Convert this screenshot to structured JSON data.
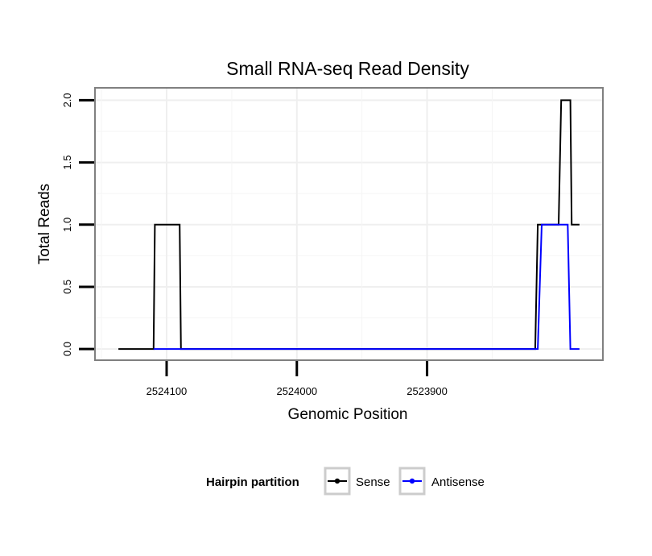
{
  "chart_data": {
    "type": "line",
    "title": "Small RNA-seq Read Density",
    "xlabel": "Genomic Position",
    "ylabel": "Total Reads",
    "x_reversed": true,
    "xlim": [
      2524155,
      2523765
    ],
    "ylim": [
      -0.09,
      2.1
    ],
    "x_ticks": [
      2524100,
      2524000,
      2523900
    ],
    "x_tick_labels": [
      "2524100",
      "2524000",
      "2523900"
    ],
    "y_ticks": [
      0,
      0.5,
      1,
      1.5,
      2
    ],
    "y_tick_labels": [
      "0.0",
      "0.5",
      "1.0",
      "1.5",
      "2.0"
    ],
    "grid": true,
    "legend": {
      "title": "Hairpin partition",
      "position": "bottom",
      "entries": [
        "Sense",
        "Antisense"
      ]
    },
    "series": [
      {
        "name": "Sense",
        "color": "#000000",
        "x": [
          2524137,
          2524110,
          2524109,
          2524090,
          2524089,
          2523817,
          2523815,
          2523799,
          2523797,
          2523790,
          2523789,
          2523783
        ],
        "y": [
          0,
          0,
          1,
          1,
          0,
          0,
          1,
          1,
          2,
          2,
          1,
          1
        ]
      },
      {
        "name": "Antisense",
        "color": "#0000ff",
        "x": [
          2524110,
          2523815,
          2523812,
          2523792,
          2523790,
          2523783
        ],
        "y": [
          0,
          0,
          1,
          1,
          0,
          0
        ]
      }
    ]
  }
}
